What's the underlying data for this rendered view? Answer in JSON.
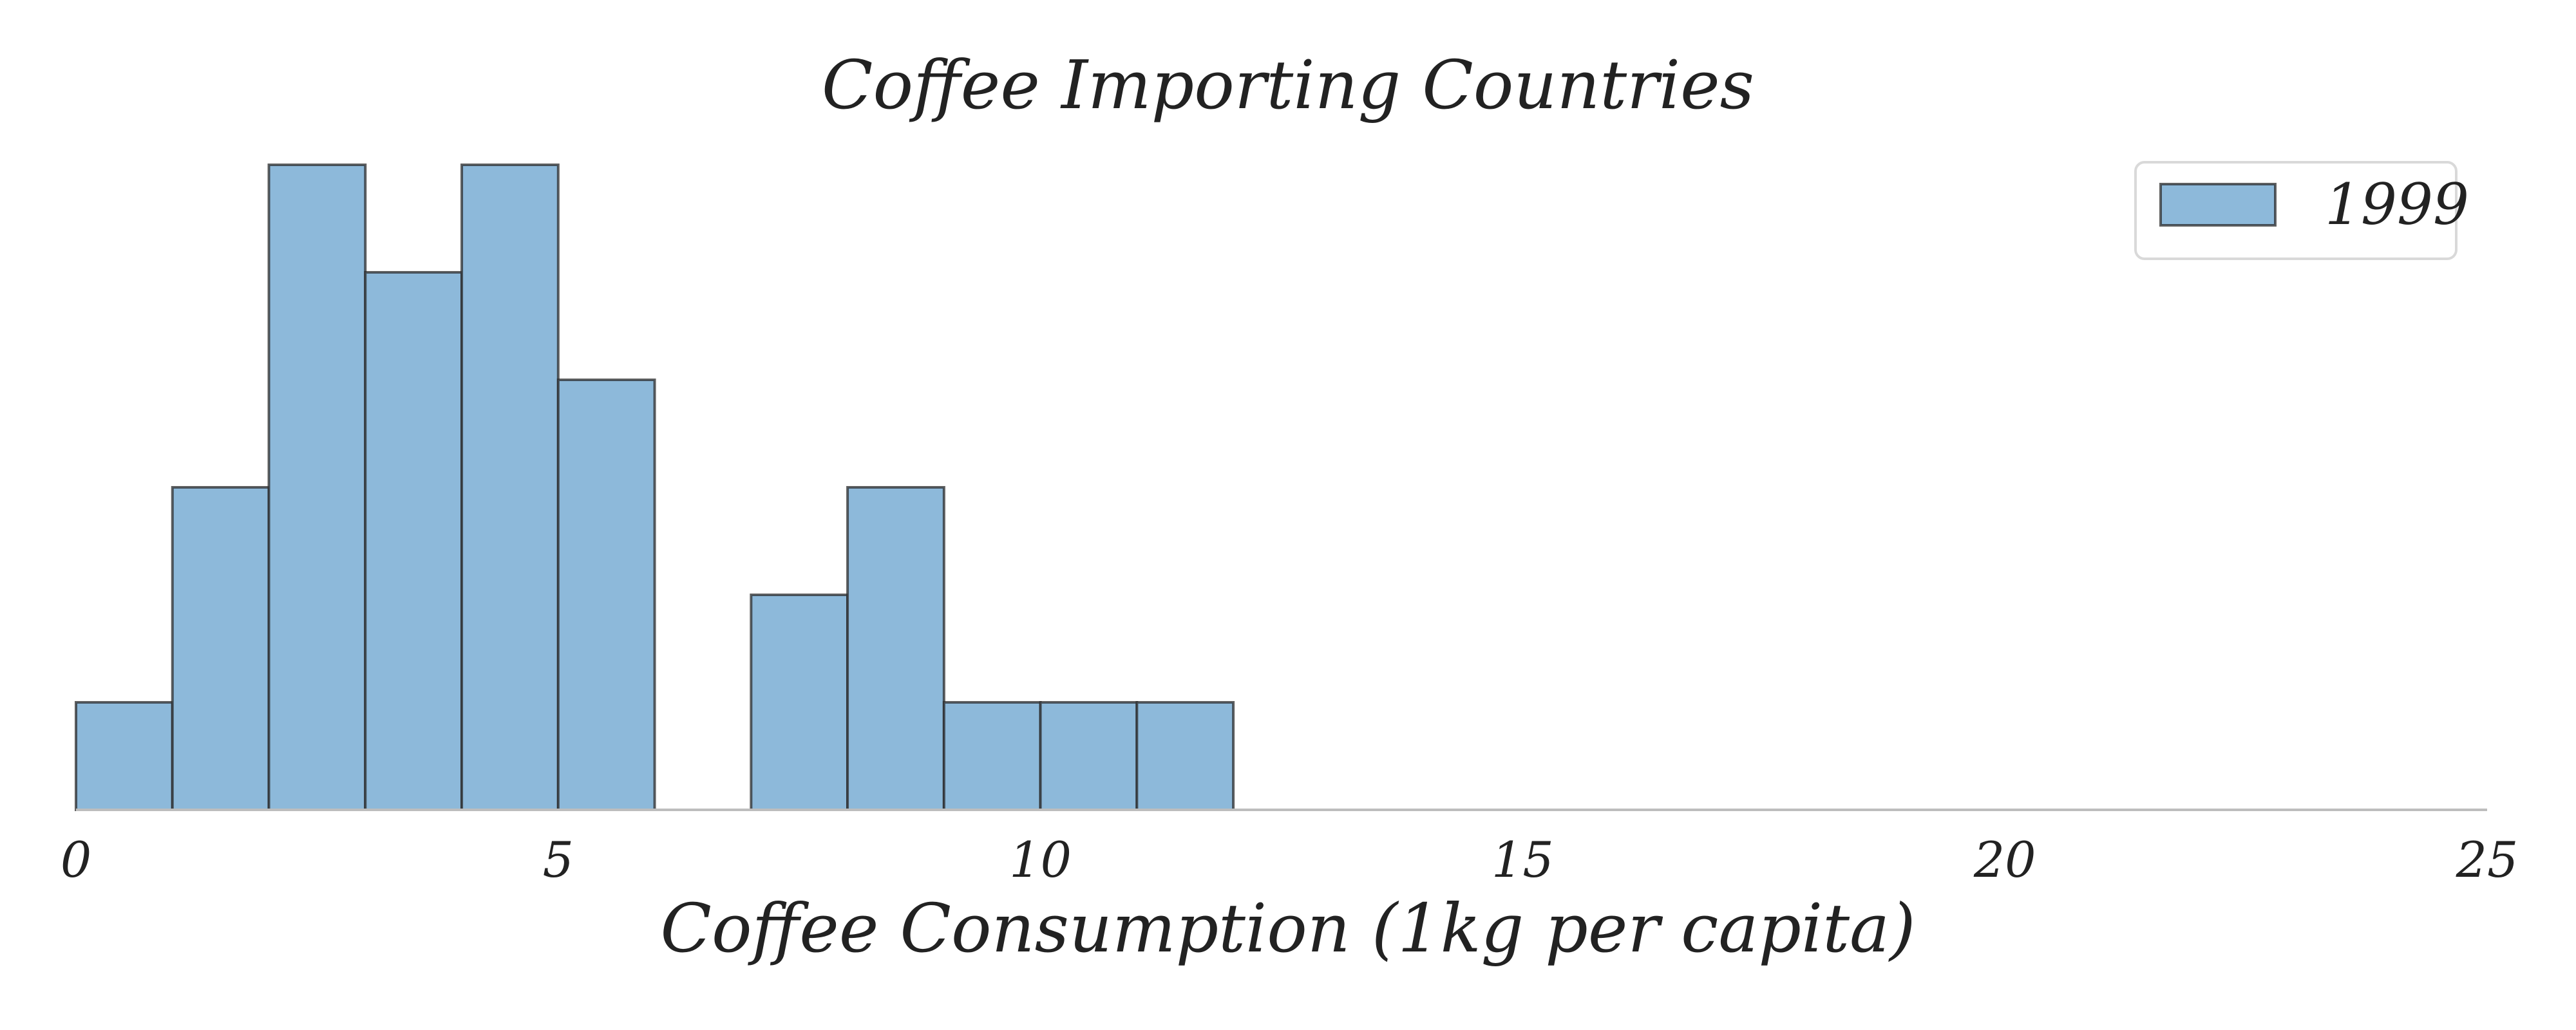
{
  "chart_data": {
    "type": "bar",
    "title": "Coffee Importing Countries",
    "xlabel": "Coffee Consumption (1kg per capita)",
    "ylabel": "",
    "bin_width": 1,
    "bins": [
      {
        "start": 0,
        "end": 1,
        "count": 1
      },
      {
        "start": 1,
        "end": 2,
        "count": 3
      },
      {
        "start": 2,
        "end": 3,
        "count": 6
      },
      {
        "start": 3,
        "end": 4,
        "count": 5
      },
      {
        "start": 4,
        "end": 5,
        "count": 6
      },
      {
        "start": 5,
        "end": 6,
        "count": 4
      },
      {
        "start": 6,
        "end": 7,
        "count": 0
      },
      {
        "start": 7,
        "end": 8,
        "count": 2
      },
      {
        "start": 8,
        "end": 9,
        "count": 3
      },
      {
        "start": 9,
        "end": 10,
        "count": 1
      },
      {
        "start": 10,
        "end": 11,
        "count": 1
      },
      {
        "start": 11,
        "end": 12,
        "count": 1
      }
    ],
    "series": [
      {
        "name": "1999",
        "color": "#8db9da",
        "edge_color": "#2b2b2b"
      }
    ],
    "xlim": [
      0,
      25
    ],
    "ylim": [
      0,
      6
    ],
    "xticks": [
      "0",
      "5",
      "10",
      "15",
      "20",
      "25"
    ],
    "grid": false,
    "legend_position": "top-right"
  }
}
